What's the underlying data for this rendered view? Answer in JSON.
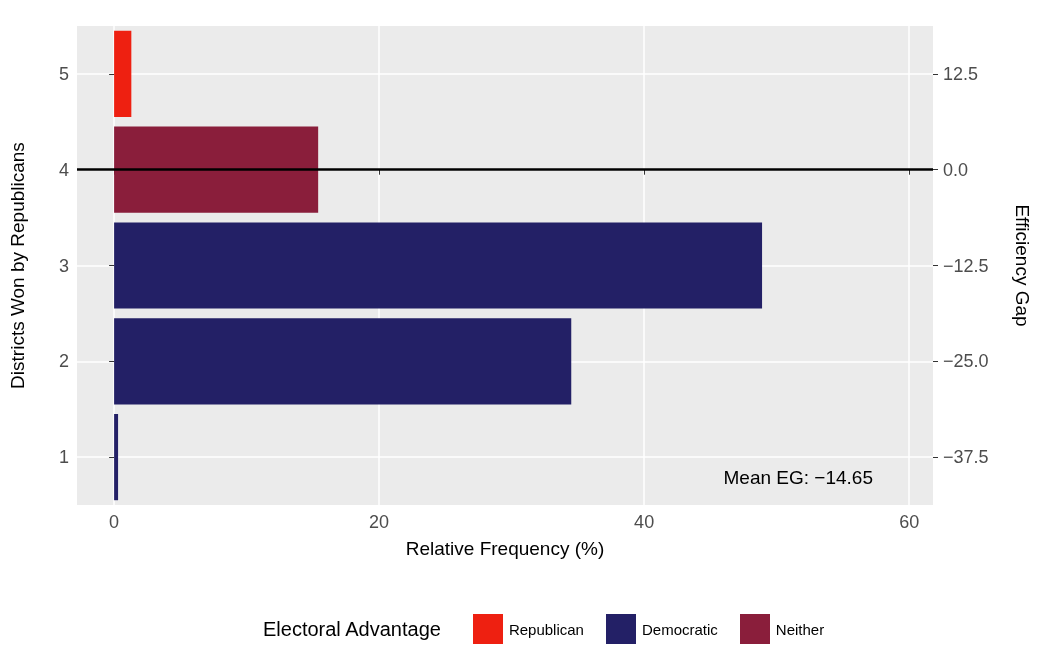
{
  "chart_data": {
    "type": "bar",
    "orientation": "horizontal",
    "categories": [
      "5",
      "4",
      "3",
      "2",
      "1"
    ],
    "series": [
      {
        "name": "Republican",
        "color": "#ee2011",
        "values": [
          1.3,
          null,
          null,
          null,
          null
        ]
      },
      {
        "name": "Democratic",
        "color": "#232066",
        "values": [
          null,
          null,
          48.9,
          34.5,
          0.3
        ]
      },
      {
        "name": "Neither",
        "color": "#8a1e3b",
        "values": [
          null,
          15.4,
          null,
          null,
          null
        ]
      }
    ],
    "xlabel": "Relative Frequency (%)",
    "ylabel": "Districts Won by Republicans",
    "y2label": "Efficiency Gap",
    "legend_title": "Electoral Advantage",
    "legend": "bottom",
    "xlim": [
      -2.8,
      61.8
    ],
    "xticks": [
      0,
      20,
      40,
      60
    ],
    "y2lim": [
      -43.75,
      18.75
    ],
    "y2ticks": [
      {
        "value": 12.5,
        "label": "12.5"
      },
      {
        "value": 0,
        "label": "0.0"
      },
      {
        "value": -12.5,
        "label": "−12.5"
      },
      {
        "value": -25,
        "label": "−25.0"
      },
      {
        "value": -37.5,
        "label": "−37.5"
      }
    ],
    "ref_lines": [
      {
        "axis": "y2",
        "value": 0,
        "color": "#000000"
      }
    ],
    "annotations": [
      "Mean EG: −14.65"
    ],
    "grid": true
  }
}
